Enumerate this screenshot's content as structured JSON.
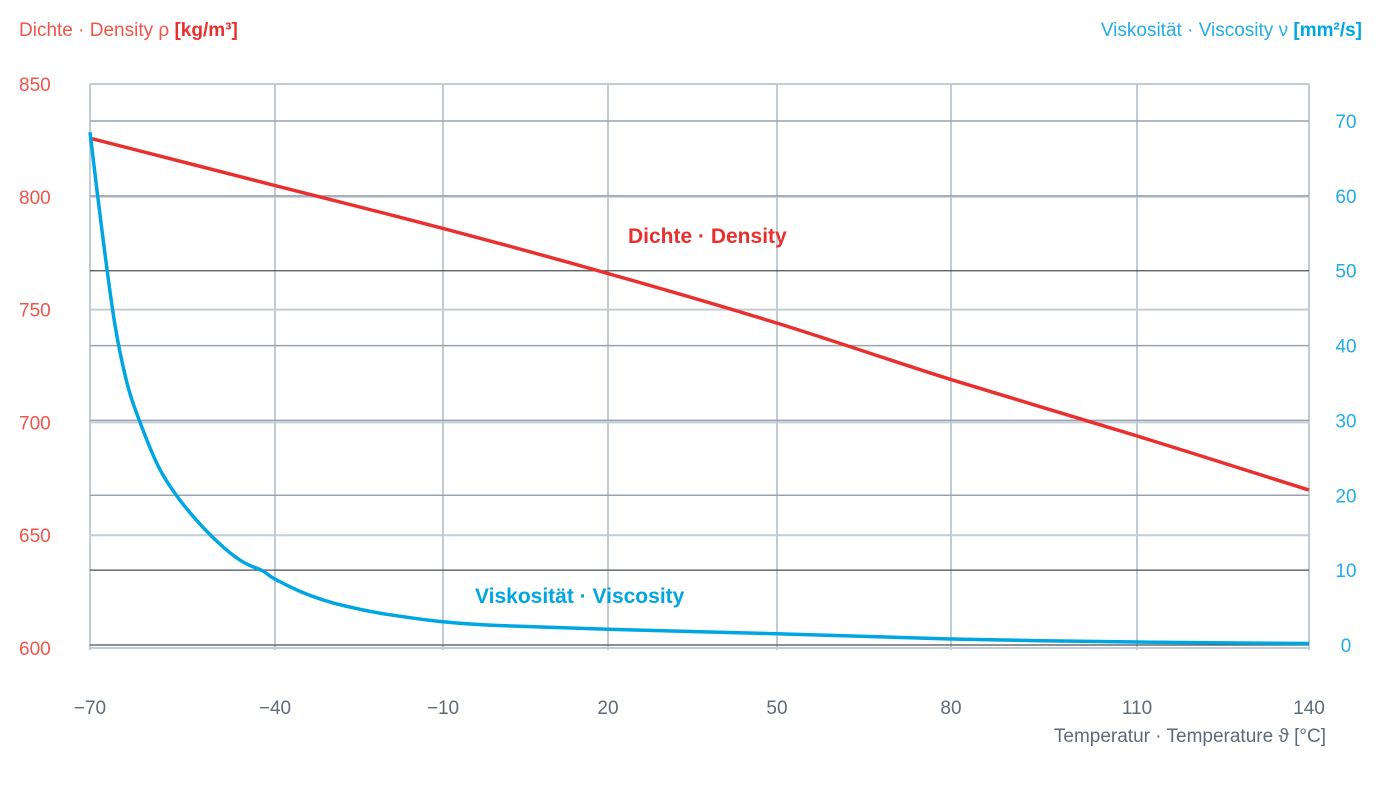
{
  "colors": {
    "density": "#e8312f",
    "viscosity": "#00a6e2",
    "density_text": "#f0544a",
    "viscosity_text": "#22ade6",
    "axis_text": "#5f6b78",
    "grid": "#c3ccd5",
    "grid_dark": "#4a4f55"
  },
  "chart_data": {
    "type": "line",
    "left_axis": {
      "label_prefix": "Dichte · Density ρ ",
      "label_unit": "[kg/m³]",
      "ylim": [
        600,
        850
      ],
      "ticks": [
        "600",
        "650",
        "700",
        "750",
        "800",
        "850"
      ],
      "tick_values": [
        600,
        650,
        700,
        750,
        800,
        850
      ]
    },
    "right_axis": {
      "label_prefix": "Viskosität · Viscosity ν ",
      "label_unit": "[mm²/s]",
      "ylim": [
        0,
        75
      ],
      "ticks": [
        "0",
        "10",
        "20",
        "30",
        "40",
        "50",
        "60",
        "70"
      ],
      "tick_values": [
        0,
        10,
        20,
        30,
        40,
        50,
        60,
        70
      ]
    },
    "x_axis": {
      "label": "Temperatur · Temperature ϑ [°C]",
      "xlim": [
        -70,
        140
      ],
      "ticks": [
        "−70",
        "−40",
        "−10",
        "20",
        "50",
        "80",
        "110",
        "140"
      ],
      "tick_values": [
        -70,
        -40,
        -10,
        20,
        50,
        80,
        110,
        140
      ]
    },
    "grid": true,
    "series": [
      {
        "name": "Dichte · Density",
        "axis": "left",
        "x": [
          -70,
          -40,
          -10,
          20,
          50,
          80,
          110,
          140
        ],
        "y": [
          826,
          805,
          786,
          766,
          744,
          719,
          694,
          670
        ]
      },
      {
        "name": "Viskosität · Viscosity",
        "axis": "right",
        "x": [
          -70,
          -68,
          -66,
          -64,
          -62,
          -59,
          -56,
          -52,
          -48,
          -45,
          -42,
          -40,
          -35,
          -30,
          -25,
          -20,
          -10,
          0,
          20,
          50,
          80,
          110,
          140
        ],
        "y": [
          68.5,
          55,
          43,
          35,
          30,
          24,
          20,
          16,
          12.8,
          11,
          9.9,
          8.8,
          7,
          5.7,
          4.8,
          4.1,
          3.1,
          2.6,
          2.1,
          1.5,
          0.8,
          0.4,
          0.2
        ]
      }
    ]
  }
}
